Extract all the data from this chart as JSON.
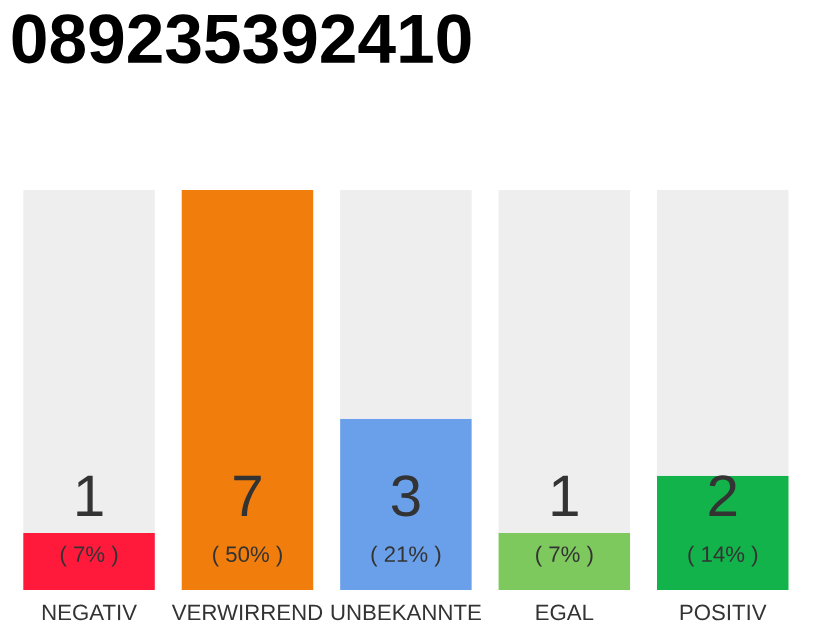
{
  "chart_data": {
    "type": "bar",
    "title": "089235392410",
    "categories": [
      "NEGATIV",
      "VERWIRREND",
      "UNBEKANNTE",
      "EGAL",
      "POSITIV"
    ],
    "stacked": true,
    "ylim": [
      0,
      7
    ],
    "tick_labels": "x",
    "grid": false,
    "legend": false,
    "series": [
      {
        "colors": [
          "#ff1a3c",
          "#f07d0c",
          "#6aa0ea",
          "#7dc95e",
          "#12b34a"
        ],
        "values": [
          1,
          7,
          3,
          1,
          2
        ],
        "value_labels": [
          "1",
          "7",
          "3",
          "1",
          "2"
        ]
      },
      {
        "color": "#eeeeee",
        "values": [
          6,
          0,
          4,
          6,
          5
        ]
      }
    ],
    "annotations": [
      "( 7% )",
      "( 50% )",
      "( 21% )",
      "( 7% )",
      "( 14% )"
    ]
  }
}
